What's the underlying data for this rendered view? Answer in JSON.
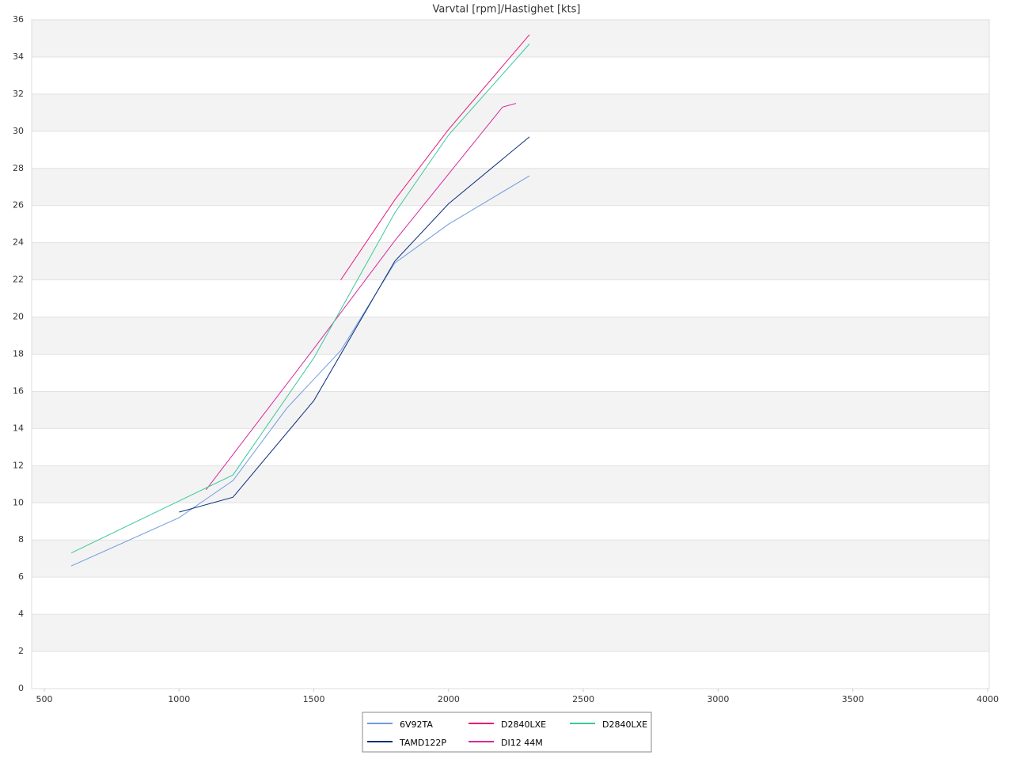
{
  "chart_data": {
    "type": "line",
    "title": "Varvtal [rpm]/Hastighet [kts]",
    "series": [
      {
        "name": "6V92TA",
        "color": "#6f9be0",
        "x": [
          600,
          1000,
          1200,
          1400,
          1600,
          1800,
          2000,
          2300
        ],
        "values": [
          6.6,
          9.2,
          11.2,
          15.1,
          18.2,
          22.9,
          25.0,
          27.6
        ]
      },
      {
        "name": "TAMD122P",
        "color": "#0b2f7a",
        "x": [
          1000,
          1200,
          1500,
          1800,
          2000,
          2300
        ],
        "values": [
          9.5,
          10.3,
          15.5,
          23.0,
          26.1,
          29.7
        ]
      },
      {
        "name": "D2840LXE",
        "color": "#e8177b",
        "x": [
          1600,
          1800,
          2000,
          2300
        ],
        "values": [
          22.0,
          26.3,
          30.1,
          35.2
        ]
      },
      {
        "name": "DI12 44M",
        "color": "#d62aa0",
        "x": [
          1100,
          1500,
          1800,
          2200,
          2250
        ],
        "values": [
          10.7,
          18.3,
          24.1,
          31.3,
          31.5
        ]
      },
      {
        "name": "D2840LXE",
        "color": "#3cc89a",
        "x": [
          600,
          1200,
          1500,
          1800,
          2000,
          2300
        ],
        "values": [
          7.3,
          11.5,
          17.8,
          25.6,
          29.8,
          34.7
        ]
      }
    ],
    "xlim": [
      453,
      4006
    ],
    "xticks": [
      500,
      1000,
      1500,
      2000,
      2500,
      3000,
      3500,
      4000
    ],
    "ylim": [
      0,
      36
    ],
    "yticks": [
      0,
      2,
      4,
      6,
      8,
      10,
      12,
      14,
      16,
      18,
      20,
      22,
      24,
      26,
      28,
      30,
      32,
      34,
      36
    ],
    "grid": true,
    "bands": true,
    "legend": "bottom"
  }
}
